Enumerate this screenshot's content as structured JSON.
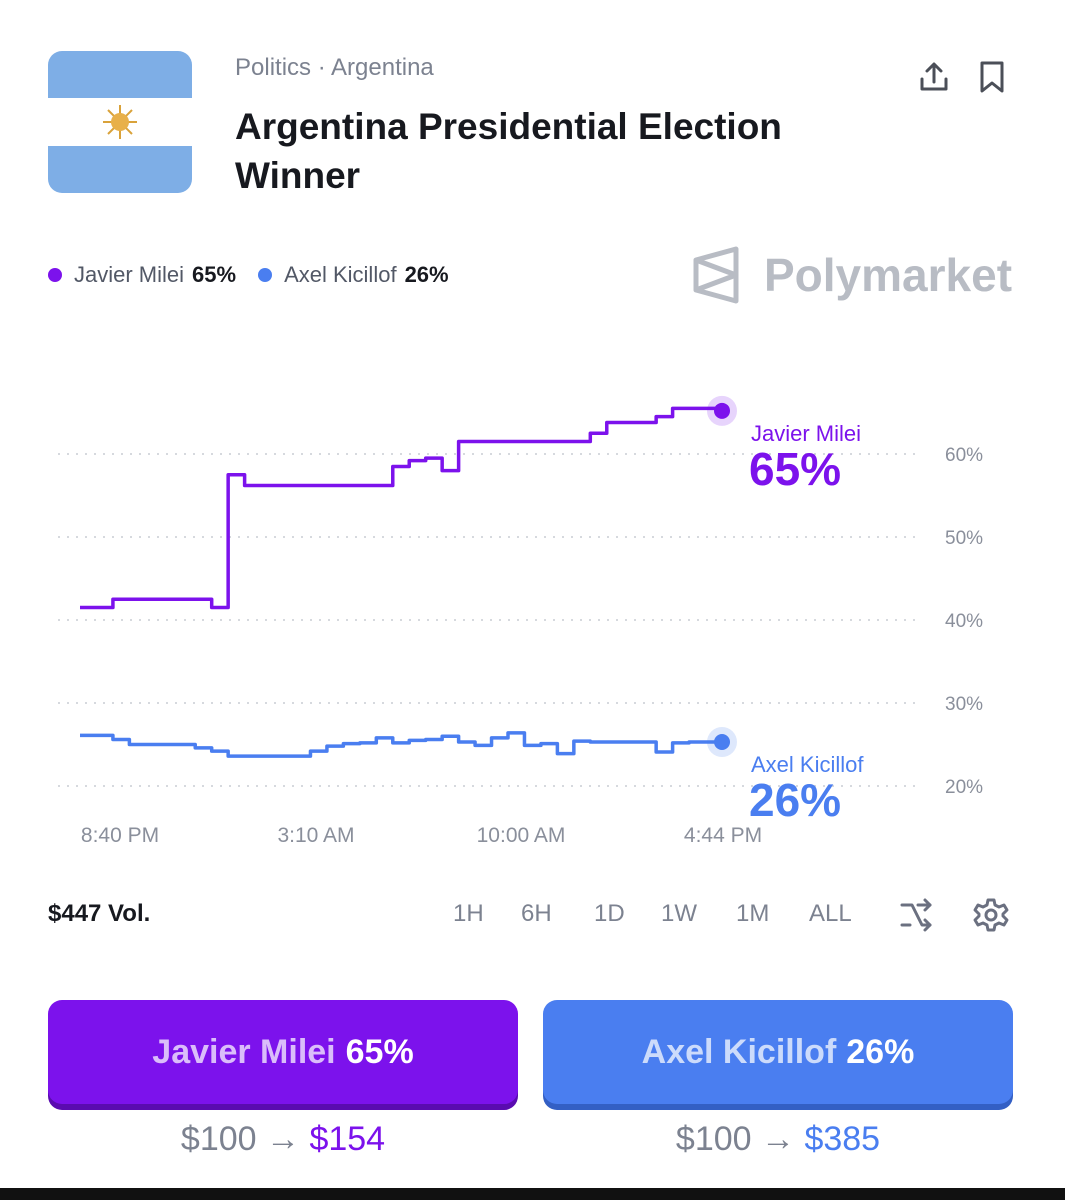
{
  "header": {
    "category": "Politics · Argentina",
    "title": "Argentina Presidential Election Winner"
  },
  "legend": [
    {
      "name": "Javier Milei",
      "value": "65%",
      "color": "#7c12ec"
    },
    {
      "name": "Axel Kicillof",
      "value": "26%",
      "color": "#4a7ef0"
    }
  ],
  "brand": "Polymarket",
  "chart_data": {
    "type": "line",
    "x_ticks": [
      "8:40 PM",
      "3:10 AM",
      "10:00 AM",
      "4:44 PM"
    ],
    "y_ticks": [
      "20%",
      "30%",
      "40%",
      "50%",
      "60%"
    ],
    "y_tick_values": [
      20,
      30,
      40,
      50,
      60
    ],
    "ylim": [
      19,
      67
    ],
    "grid": true,
    "series": [
      {
        "name": "Javier Milei",
        "label_value": "65%",
        "color": "#7c12ec",
        "values": [
          41.5,
          41.5,
          42.5,
          42.5,
          42.5,
          42.5,
          42.5,
          42.5,
          41.5,
          57.5,
          56.2,
          56.2,
          56.2,
          56.2,
          56.2,
          56.2,
          56.2,
          56.2,
          56.2,
          58.5,
          59.2,
          59.5,
          58,
          61.5,
          61.5,
          61.5,
          61.5,
          61.5,
          61.5,
          61.5,
          61.5,
          62.5,
          63.8,
          63.8,
          63.8,
          64.5,
          65.5,
          65.5,
          65.5,
          65.2
        ]
      },
      {
        "name": "Axel Kicillof",
        "label_value": "26%",
        "color": "#4a7ef0",
        "values": [
          26.1,
          26.1,
          25.6,
          25,
          25,
          25,
          25,
          24.6,
          24.2,
          23.6,
          23.6,
          23.6,
          23.6,
          23.6,
          24.2,
          24.8,
          25.1,
          25.2,
          25.8,
          25.2,
          25.5,
          25.6,
          26,
          25.3,
          24.9,
          25.8,
          26.4,
          24.9,
          25.1,
          23.9,
          25.4,
          25.3,
          25.3,
          25.3,
          25.3,
          24.1,
          25.2,
          25.3,
          25.3,
          25.3
        ]
      }
    ]
  },
  "volume": "$447 Vol.",
  "time_ranges": [
    "1H",
    "6H",
    "1D",
    "1W",
    "1M",
    "ALL"
  ],
  "outcomes": [
    {
      "name": "Javier Milei",
      "pct": "65%",
      "stake": "$100",
      "arrow": "→",
      "payout": "$154",
      "color": "#7c12ec"
    },
    {
      "name": "Axel Kicillof",
      "pct": "26%",
      "stake": "$100",
      "arrow": "→",
      "payout": "$385",
      "color": "#4a7ef0"
    }
  ]
}
